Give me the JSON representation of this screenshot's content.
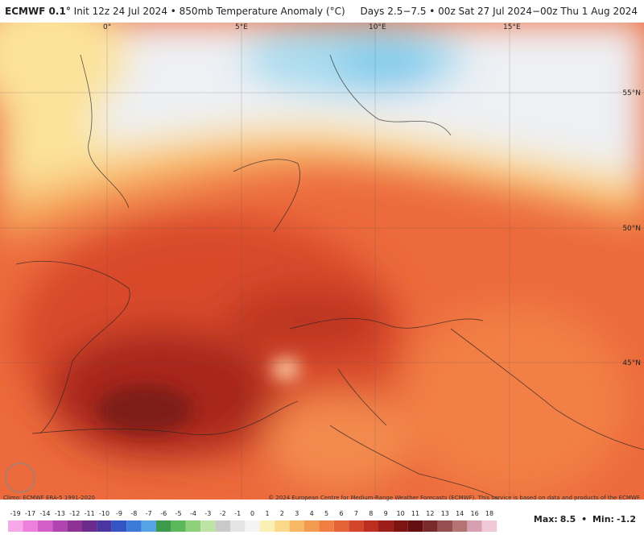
{
  "header": {
    "model": "ECMWF 0.1°",
    "description": "Init 12z 24 Jul 2024 • 850mb Temperature Anomaly (°C)",
    "period": "Days 2.5−7.5 • 00z Sat 27 Jul 2024−00z Thu 1 Aug 2024"
  },
  "map": {
    "longitude_labels": [
      "0°",
      "5°E",
      "10°E",
      "15°E"
    ],
    "latitude_labels": [
      "55°N",
      "50°N",
      "45°N"
    ]
  },
  "footer": {
    "climatology": "Climo: ECMWF ERA-5 1991-2020",
    "copyright": "© 2024 European Centre for Medium-Range Weather Forecasts (ECMWF). This service is based on data and products of the ECMWF."
  },
  "colorbar": {
    "labels": [
      -19,
      -17,
      -14,
      -13,
      -12,
      -11,
      -10,
      -9,
      -8,
      -7,
      -6,
      -5,
      -4,
      -3,
      -2,
      -1,
      0,
      1,
      2,
      3,
      4,
      5,
      6,
      7,
      8,
      9,
      10,
      11,
      12,
      13,
      14,
      16,
      18
    ]
  },
  "stats": {
    "max_label": "Max:",
    "max": 8.5,
    "separator": "•",
    "min_label": "Min:",
    "min": -1.2
  }
}
